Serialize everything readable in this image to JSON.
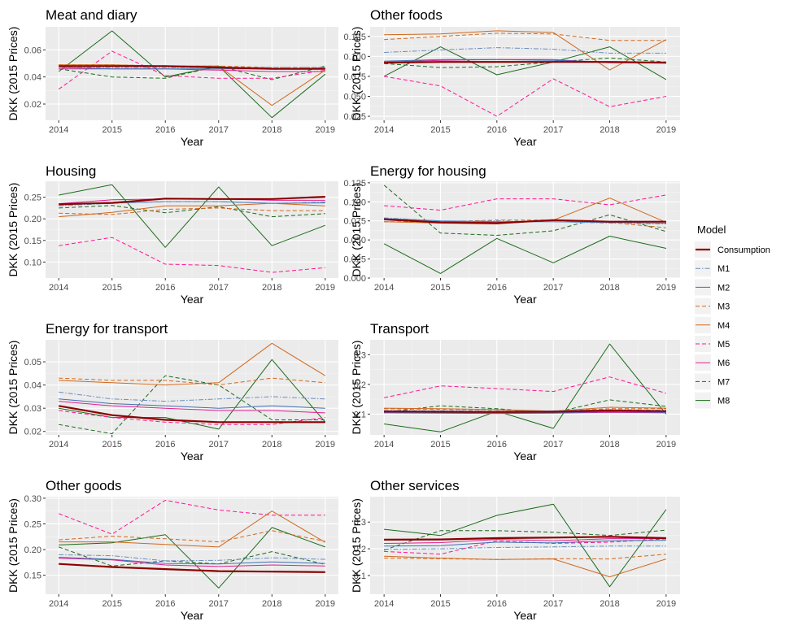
{
  "legend": {
    "title": "Model",
    "position": "right",
    "entries": [
      {
        "name": "Consumption",
        "color": "#8b0000",
        "dash": "solid",
        "width": 2.2
      },
      {
        "name": "M1",
        "color": "#6a8fc0",
        "dash": "dashdot",
        "width": 1
      },
      {
        "name": "M2",
        "color": "#3f6fb5",
        "dash": "solid",
        "width": 1
      },
      {
        "name": "M3",
        "color": "#d2691e",
        "dash": "dashed",
        "width": 1
      },
      {
        "name": "M4",
        "color": "#d2691e",
        "dash": "solid",
        "width": 1
      },
      {
        "name": "M5",
        "color": "#ff1493",
        "dash": "dashed",
        "width": 1
      },
      {
        "name": "M6",
        "color": "#e0208f",
        "dash": "solid",
        "width": 1
      },
      {
        "name": "M7",
        "color": "#1a6b1a",
        "dash": "dashed",
        "width": 1
      },
      {
        "name": "M8",
        "color": "#1a6b1a",
        "dash": "solid",
        "width": 1
      }
    ]
  },
  "chart_data": [
    {
      "type": "line",
      "title": "Meat and diary",
      "xlabel": "Year",
      "ylabel": "DKK (2015 Prices)",
      "x": [
        2014,
        2015,
        2016,
        2017,
        2018,
        2019
      ],
      "ylim": [
        0.008,
        0.077
      ],
      "yticks": [
        0.02,
        0.04,
        0.06
      ],
      "ytick_labels": [
        "0.02",
        "0.04",
        "0.06"
      ],
      "grid": true,
      "series": [
        {
          "name": "Consumption",
          "values": [
            0.048,
            0.048,
            0.048,
            0.047,
            0.046,
            0.046
          ]
        },
        {
          "name": "M1",
          "values": [
            0.047,
            0.047,
            0.047,
            0.047,
            0.047,
            0.047
          ]
        },
        {
          "name": "M2",
          "values": [
            0.047,
            0.046,
            0.046,
            0.046,
            0.046,
            0.046
          ]
        },
        {
          "name": "M3",
          "values": [
            0.049,
            0.049,
            0.048,
            0.048,
            0.047,
            0.047
          ]
        },
        {
          "name": "M4",
          "values": [
            0.049,
            0.049,
            0.048,
            0.048,
            0.019,
            0.045
          ]
        },
        {
          "name": "M5",
          "values": [
            0.031,
            0.059,
            0.041,
            0.039,
            0.039,
            0.045
          ]
        },
        {
          "name": "M6",
          "values": [
            0.046,
            0.046,
            0.046,
            0.045,
            0.044,
            0.044
          ]
        },
        {
          "name": "M7",
          "values": [
            0.046,
            0.04,
            0.039,
            0.048,
            0.038,
            0.048
          ]
        },
        {
          "name": "M8",
          "values": [
            0.044,
            0.074,
            0.04,
            0.048,
            0.01,
            0.042
          ]
        }
      ]
    },
    {
      "type": "line",
      "title": "Other foods",
      "xlabel": "Year",
      "ylabel": "DKK (2015 Prices)",
      "x": [
        2014,
        2015,
        2016,
        2017,
        2018,
        2019
      ],
      "ylim": [
        0.02,
        0.137
      ],
      "yticks": [
        0.025,
        0.05,
        0.075,
        0.1,
        0.125
      ],
      "ytick_labels": [
        "0.025",
        "0.050",
        "0.075",
        "0.100",
        "0.125"
      ],
      "grid": true,
      "series": [
        {
          "name": "Consumption",
          "values": [
            0.092,
            0.093,
            0.093,
            0.093,
            0.093,
            0.092
          ]
        },
        {
          "name": "M1",
          "values": [
            0.105,
            0.108,
            0.111,
            0.109,
            0.104,
            0.104
          ]
        },
        {
          "name": "M2",
          "values": [
            0.094,
            0.096,
            0.096,
            0.095,
            0.093,
            0.093
          ]
        },
        {
          "name": "M3",
          "values": [
            0.121,
            0.125,
            0.129,
            0.128,
            0.12,
            0.12
          ]
        },
        {
          "name": "M4",
          "values": [
            0.127,
            0.128,
            0.132,
            0.13,
            0.083,
            0.121
          ]
        },
        {
          "name": "M5",
          "values": [
            0.075,
            0.063,
            0.025,
            0.072,
            0.037,
            0.05
          ]
        },
        {
          "name": "M6",
          "values": [
            0.093,
            0.095,
            0.096,
            0.096,
            0.092,
            0.092
          ]
        },
        {
          "name": "M7",
          "values": [
            0.091,
            0.086,
            0.087,
            0.093,
            0.098,
            0.093
          ]
        },
        {
          "name": "M8",
          "values": [
            0.075,
            0.112,
            0.077,
            0.093,
            0.112,
            0.071
          ]
        }
      ]
    },
    {
      "type": "line",
      "title": "Housing",
      "xlabel": "Year",
      "ylabel": "DKK (2015 Prices)",
      "x": [
        2014,
        2015,
        2016,
        2017,
        2018,
        2019
      ],
      "ylim": [
        0.063,
        0.287
      ],
      "yticks": [
        0.1,
        0.15,
        0.2,
        0.25
      ],
      "ytick_labels": [
        "0.10",
        "0.15",
        "0.20",
        "0.25"
      ],
      "grid": true,
      "series": [
        {
          "name": "Consumption",
          "values": [
            0.234,
            0.237,
            0.247,
            0.246,
            0.246,
            0.251
          ]
        },
        {
          "name": "M1",
          "values": [
            0.23,
            0.236,
            0.24,
            0.24,
            0.236,
            0.239
          ]
        },
        {
          "name": "M2",
          "values": [
            0.232,
            0.237,
            0.24,
            0.24,
            0.236,
            0.237
          ]
        },
        {
          "name": "M3",
          "values": [
            0.213,
            0.21,
            0.222,
            0.225,
            0.219,
            0.219
          ]
        },
        {
          "name": "M4",
          "values": [
            0.205,
            0.215,
            0.23,
            0.23,
            0.236,
            0.23
          ]
        },
        {
          "name": "M5",
          "values": [
            0.138,
            0.157,
            0.095,
            0.092,
            0.076,
            0.087
          ]
        },
        {
          "name": "M6",
          "values": [
            0.235,
            0.244,
            0.246,
            0.246,
            0.243,
            0.243
          ]
        },
        {
          "name": "M7",
          "values": [
            0.225,
            0.231,
            0.214,
            0.228,
            0.205,
            0.212
          ]
        },
        {
          "name": "M8",
          "values": [
            0.255,
            0.279,
            0.134,
            0.274,
            0.138,
            0.185
          ]
        }
      ]
    },
    {
      "type": "line",
      "title": "Energy for housing",
      "xlabel": "Year",
      "ylabel": "DKK (2015 Prices)",
      "x": [
        2014,
        2015,
        2016,
        2017,
        2018,
        2019
      ],
      "ylim": [
        0.0,
        0.127
      ],
      "yticks": [
        0.0,
        0.025,
        0.05,
        0.075,
        0.1,
        0.125
      ],
      "ytick_labels": [
        "0.000",
        "0.025",
        "0.050",
        "0.075",
        "0.100",
        "0.125"
      ],
      "grid": true,
      "series": [
        {
          "name": "Consumption",
          "values": [
            0.077,
            0.073,
            0.072,
            0.076,
            0.074,
            0.074
          ]
        },
        {
          "name": "M1",
          "values": [
            0.079,
            0.075,
            0.075,
            0.074,
            0.072,
            0.071
          ]
        },
        {
          "name": "M2",
          "values": [
            0.078,
            0.075,
            0.074,
            0.074,
            0.073,
            0.072
          ]
        },
        {
          "name": "M3",
          "values": [
            0.074,
            0.074,
            0.076,
            0.076,
            0.073,
            0.066
          ]
        },
        {
          "name": "M4",
          "values": [
            0.074,
            0.072,
            0.071,
            0.076,
            0.105,
            0.073
          ]
        },
        {
          "name": "M5",
          "values": [
            0.095,
            0.089,
            0.104,
            0.104,
            0.096,
            0.109
          ]
        },
        {
          "name": "M6",
          "values": [
            0.077,
            0.074,
            0.073,
            0.076,
            0.074,
            0.074
          ]
        },
        {
          "name": "M7",
          "values": [
            0.122,
            0.059,
            0.056,
            0.062,
            0.083,
            0.061
          ]
        },
        {
          "name": "M8",
          "values": [
            0.045,
            0.006,
            0.052,
            0.02,
            0.055,
            0.039
          ]
        }
      ]
    },
    {
      "type": "line",
      "title": "Energy for transport",
      "xlabel": "Year",
      "ylabel": "DKK (2015 Prices)",
      "x": [
        2014,
        2015,
        2016,
        2017,
        2018,
        2019
      ],
      "ylim": [
        0.0185,
        0.0595
      ],
      "yticks": [
        0.02,
        0.03,
        0.04,
        0.05
      ],
      "ytick_labels": [
        "0.02",
        "0.03",
        "0.04",
        "0.05"
      ],
      "grid": true,
      "series": [
        {
          "name": "Consumption",
          "values": [
            0.031,
            0.027,
            0.025,
            0.024,
            0.024,
            0.024
          ]
        },
        {
          "name": "M1",
          "values": [
            0.037,
            0.034,
            0.033,
            0.034,
            0.035,
            0.034
          ]
        },
        {
          "name": "M2",
          "values": [
            0.034,
            0.032,
            0.031,
            0.03,
            0.031,
            0.03
          ]
        },
        {
          "name": "M3",
          "values": [
            0.043,
            0.042,
            0.042,
            0.04,
            0.043,
            0.041
          ]
        },
        {
          "name": "M4",
          "values": [
            0.042,
            0.041,
            0.04,
            0.041,
            0.058,
            0.044
          ]
        },
        {
          "name": "M5",
          "values": [
            0.029,
            0.026,
            0.024,
            0.023,
            0.023,
            0.026
          ]
        },
        {
          "name": "M6",
          "values": [
            0.033,
            0.031,
            0.03,
            0.029,
            0.029,
            0.028
          ]
        },
        {
          "name": "M7",
          "values": [
            0.023,
            0.019,
            0.044,
            0.04,
            0.025,
            0.025
          ]
        },
        {
          "name": "M8",
          "values": [
            0.03,
            0.026,
            0.026,
            0.021,
            0.051,
            0.024
          ]
        }
      ]
    },
    {
      "type": "line",
      "title": "Transport",
      "xlabel": "Year",
      "ylabel": "DKK (2015 Prices)",
      "x": [
        2014,
        2015,
        2016,
        2017,
        2018,
        2019
      ],
      "ylim": [
        0.03,
        0.35
      ],
      "yticks": [
        0.1,
        0.2,
        0.3
      ],
      "ytick_labels": [
        "0.1",
        "0.2",
        "0.3"
      ],
      "grid": true,
      "series": [
        {
          "name": "Consumption",
          "values": [
            0.109,
            0.108,
            0.107,
            0.108,
            0.112,
            0.11
          ]
        },
        {
          "name": "M1",
          "values": [
            0.112,
            0.111,
            0.11,
            0.111,
            0.115,
            0.113
          ]
        },
        {
          "name": "M2",
          "values": [
            0.106,
            0.105,
            0.104,
            0.105,
            0.108,
            0.106
          ]
        },
        {
          "name": "M3",
          "values": [
            0.118,
            0.116,
            0.114,
            0.11,
            0.118,
            0.118
          ]
        },
        {
          "name": "M4",
          "values": [
            0.12,
            0.118,
            0.115,
            0.11,
            0.123,
            0.12
          ]
        },
        {
          "name": "M5",
          "values": [
            0.155,
            0.195,
            0.186,
            0.176,
            0.225,
            0.17
          ]
        },
        {
          "name": "M6",
          "values": [
            0.104,
            0.103,
            0.102,
            0.103,
            0.106,
            0.104
          ]
        },
        {
          "name": "M7",
          "values": [
            0.106,
            0.128,
            0.118,
            0.104,
            0.148,
            0.126
          ]
        },
        {
          "name": "M8",
          "values": [
            0.067,
            0.04,
            0.11,
            0.052,
            0.336,
            0.1
          ]
        }
      ]
    },
    {
      "type": "line",
      "title": "Other goods",
      "xlabel": "Year",
      "ylabel": "DKK (2015 Prices)",
      "x": [
        2014,
        2015,
        2016,
        2017,
        2018,
        2019
      ],
      "ylim": [
        0.113,
        0.303
      ],
      "yticks": [
        0.15,
        0.2,
        0.25,
        0.3
      ],
      "ytick_labels": [
        "0.15",
        "0.20",
        "0.25",
        "0.30"
      ],
      "grid": true,
      "series": [
        {
          "name": "Consumption",
          "values": [
            0.172,
            0.166,
            0.162,
            0.158,
            0.157,
            0.156
          ]
        },
        {
          "name": "M1",
          "values": [
            0.19,
            0.188,
            0.178,
            0.179,
            0.184,
            0.181
          ]
        },
        {
          "name": "M2",
          "values": [
            0.185,
            0.181,
            0.173,
            0.172,
            0.176,
            0.173
          ]
        },
        {
          "name": "M3",
          "values": [
            0.219,
            0.226,
            0.221,
            0.215,
            0.237,
            0.216
          ]
        },
        {
          "name": "M4",
          "values": [
            0.215,
            0.215,
            0.21,
            0.205,
            0.275,
            0.214
          ]
        },
        {
          "name": "M5",
          "values": [
            0.27,
            0.23,
            0.296,
            0.277,
            0.267,
            0.267
          ]
        },
        {
          "name": "M6",
          "values": [
            0.183,
            0.18,
            0.17,
            0.167,
            0.17,
            0.168
          ]
        },
        {
          "name": "M7",
          "values": [
            0.205,
            0.168,
            0.178,
            0.172,
            0.196,
            0.171
          ]
        },
        {
          "name": "M8",
          "values": [
            0.209,
            0.213,
            0.229,
            0.125,
            0.243,
            0.205
          ]
        }
      ]
    },
    {
      "type": "line",
      "title": "Other services",
      "xlabel": "Year",
      "ylabel": "DKK (2015 Prices)",
      "x": [
        2014,
        2015,
        2016,
        2017,
        2018,
        2019
      ],
      "ylim": [
        0.03,
        0.395
      ],
      "yticks": [
        0.1,
        0.2,
        0.3
      ],
      "ytick_labels": [
        "0.1",
        "0.2",
        "0.3"
      ],
      "grid": true,
      "series": [
        {
          "name": "Consumption",
          "values": [
            0.234,
            0.235,
            0.24,
            0.242,
            0.245,
            0.24
          ]
        },
        {
          "name": "M1",
          "values": [
            0.198,
            0.2,
            0.205,
            0.207,
            0.21,
            0.21
          ]
        },
        {
          "name": "M2",
          "values": [
            0.21,
            0.212,
            0.225,
            0.222,
            0.23,
            0.232
          ]
        },
        {
          "name": "M3",
          "values": [
            0.165,
            0.163,
            0.16,
            0.163,
            0.162,
            0.18
          ]
        },
        {
          "name": "M4",
          "values": [
            0.172,
            0.165,
            0.16,
            0.162,
            0.095,
            0.162
          ]
        },
        {
          "name": "M5",
          "values": [
            0.19,
            0.18,
            0.23,
            0.22,
            0.225,
            0.237
          ]
        },
        {
          "name": "M6",
          "values": [
            0.22,
            0.223,
            0.235,
            0.23,
            0.238,
            0.238
          ]
        },
        {
          "name": "M7",
          "values": [
            0.195,
            0.268,
            0.268,
            0.262,
            0.25,
            0.27
          ]
        },
        {
          "name": "M8",
          "values": [
            0.273,
            0.25,
            0.325,
            0.367,
            0.058,
            0.347
          ]
        }
      ]
    }
  ]
}
